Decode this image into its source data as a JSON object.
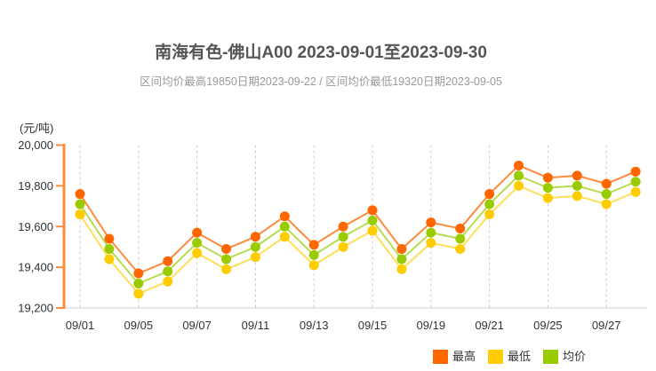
{
  "header": {
    "title": "南海有色-佛山A00 2023-09-01至2023-09-30",
    "subtitle": "区间均价最高19850日期2023-09-22 / 区间均价最低19320日期2023-09-05"
  },
  "chart_data": {
    "type": "line",
    "title": "南海有色-佛山A00 2023-09-01至2023-09-30",
    "subtitle": "区间均价最高19850日期2023-09-22 / 区间均价最低19320日期2023-09-05",
    "ylabel": "(元/吨)",
    "xlabel": "",
    "ylim": [
      19200,
      20000
    ],
    "grid": "dashed vertical gridlines at labeled x ticks",
    "legend_position": "bottom-right",
    "x": [
      "09/01",
      "09/04",
      "09/05",
      "09/06",
      "09/07",
      "09/08",
      "09/11",
      "09/12",
      "09/13",
      "09/14",
      "09/15",
      "09/18",
      "09/19",
      "09/20",
      "09/21",
      "09/22",
      "09/25",
      "09/26",
      "09/27",
      "09/28"
    ],
    "x_ticks": [
      {
        "index": 0,
        "label": "09/01"
      },
      {
        "index": 2,
        "label": "09/05"
      },
      {
        "index": 4,
        "label": "09/07"
      },
      {
        "index": 6,
        "label": "09/11"
      },
      {
        "index": 8,
        "label": "09/13"
      },
      {
        "index": 10,
        "label": "09/15"
      },
      {
        "index": 12,
        "label": "09/19"
      },
      {
        "index": 14,
        "label": "09/21"
      },
      {
        "index": 16,
        "label": "09/25"
      },
      {
        "index": 18,
        "label": "09/27"
      }
    ],
    "y_ticks": [
      {
        "value": 20000,
        "label": "20,000"
      },
      {
        "value": 19800,
        "label": "19,800"
      },
      {
        "value": 19600,
        "label": "19,600"
      },
      {
        "value": 19400,
        "label": "19,400"
      },
      {
        "value": 19200,
        "label": "19,200"
      }
    ],
    "series": [
      {
        "name": "最高",
        "marker_color": "#FF6600",
        "line_color": "#FF8A3C",
        "values": [
          19760,
          19540,
          19370,
          19430,
          19570,
          19490,
          19550,
          19650,
          19510,
          19600,
          19680,
          19490,
          19620,
          19590,
          19760,
          19900,
          19840,
          19850,
          19810,
          19870
        ]
      },
      {
        "name": "最低",
        "marker_color": "#FFCC00",
        "line_color": "#FFDE59",
        "values": [
          19660,
          19440,
          19270,
          19330,
          19470,
          19390,
          19450,
          19550,
          19410,
          19500,
          19580,
          19390,
          19520,
          19490,
          19660,
          19800,
          19740,
          19750,
          19710,
          19770
        ]
      },
      {
        "name": "均价",
        "marker_color": "#99CC00",
        "line_color": "#B8DC50",
        "values": [
          19710,
          19490,
          19320,
          19380,
          19520,
          19440,
          19500,
          19600,
          19460,
          19550,
          19630,
          19440,
          19570,
          19540,
          19710,
          19850,
          19790,
          19800,
          19760,
          19820
        ]
      }
    ],
    "axis_colors": {
      "y_axis": "#FF8A3C",
      "x_axis": "#CCCCCC",
      "grid": "#CCCCCC"
    }
  }
}
